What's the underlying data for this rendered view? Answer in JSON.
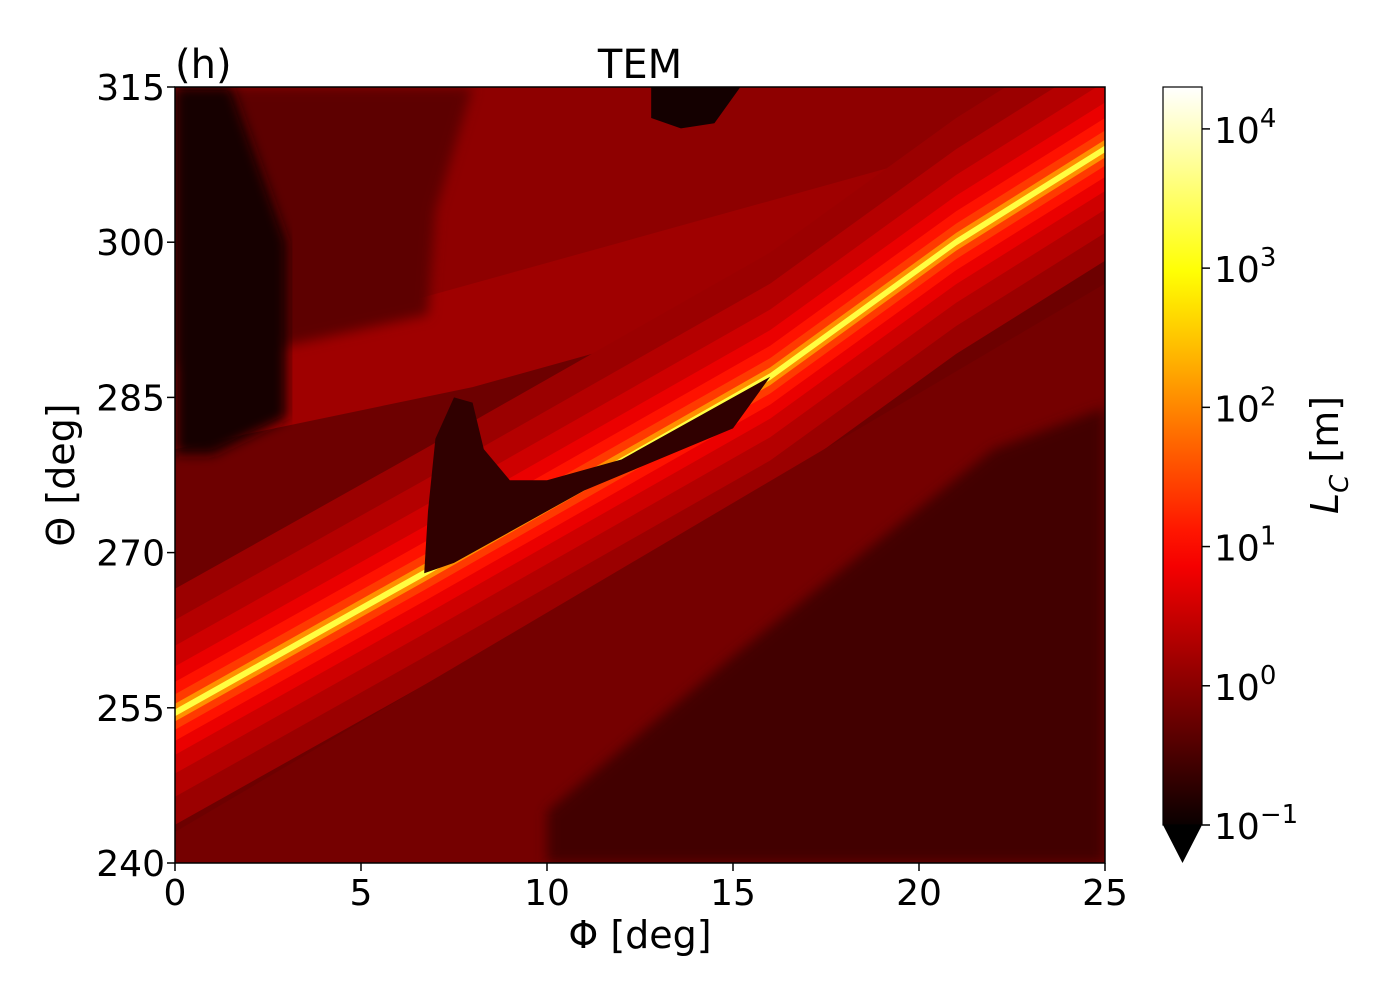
{
  "chart_data": {
    "type": "heatmap",
    "panel_label": "(h)",
    "title": "TEM",
    "xlabel": "Φ [deg]",
    "ylabel": "Θ [deg]",
    "xlim": [
      0,
      25
    ],
    "ylim": [
      240,
      315
    ],
    "x_ticks": [
      {
        "value": 0,
        "label": "0"
      },
      {
        "value": 5,
        "label": "5"
      },
      {
        "value": 10,
        "label": "10"
      },
      {
        "value": 15,
        "label": "15"
      },
      {
        "value": 20,
        "label": "20"
      },
      {
        "value": 25,
        "label": "25"
      }
    ],
    "y_ticks": [
      {
        "value": 240,
        "label": "240"
      },
      {
        "value": 255,
        "label": "255"
      },
      {
        "value": 270,
        "label": "270"
      },
      {
        "value": 285,
        "label": "285"
      },
      {
        "value": 300,
        "label": "300"
      },
      {
        "value": 315,
        "label": "315"
      }
    ],
    "colorbar": {
      "label": "L_C [m]",
      "label_main": "L",
      "label_sub": "C",
      "label_unit": " [m]",
      "scale": "log",
      "colormap": "hot",
      "extend": "min",
      "range": [
        0.1,
        20000
      ],
      "ticks": [
        {
          "value": 0.1,
          "base": "10",
          "exp": "−1"
        },
        {
          "value": 1,
          "base": "10",
          "exp": "0"
        },
        {
          "value": 10,
          "base": "10",
          "exp": "1"
        },
        {
          "value": 100,
          "base": "10",
          "exp": "2"
        },
        {
          "value": 1000,
          "base": "10",
          "exp": "3"
        },
        {
          "value": 10000,
          "base": "10",
          "exp": "4"
        }
      ]
    },
    "ridge": {
      "description_points_phi_theta": [
        [
          0,
          254.5
        ],
        [
          6.7,
          268
        ],
        [
          16,
          287
        ],
        [
          21,
          300
        ]
      ],
      "peak_value_m": 2000
    },
    "low_pocket_value_m": 0.2,
    "background_value_m": 0.6,
    "upper_band_value_m": 1.5
  }
}
